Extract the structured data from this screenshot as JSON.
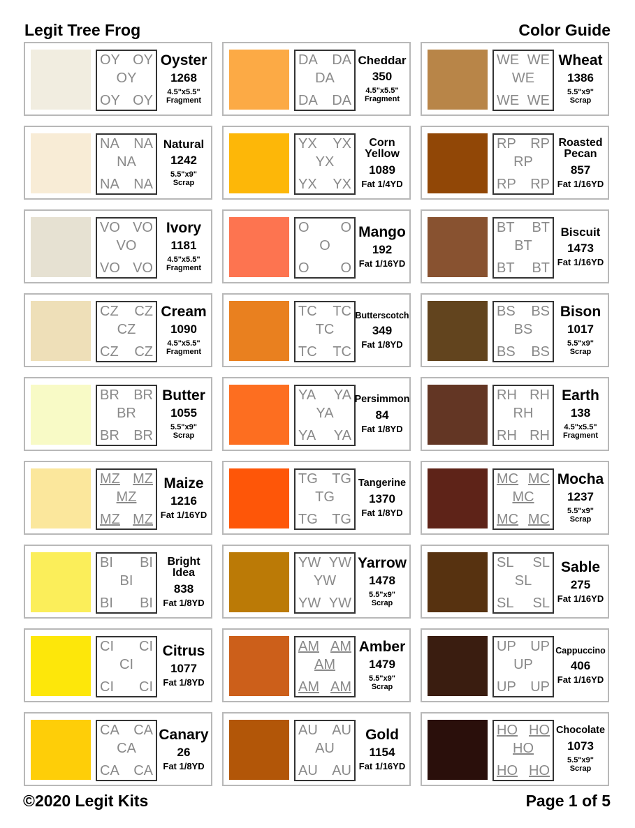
{
  "header": {
    "left": "Legit Tree Frog",
    "right": "Color Guide"
  },
  "footer": {
    "left": "©2020 Legit Kits",
    "right": "Page 1 of 5"
  },
  "columns": [
    [
      {
        "name": "Oyster",
        "code": "OY",
        "number": "1268",
        "size": [
          "4.5\"x5.5\"",
          "Fragment"
        ],
        "color": "#f1ede0"
      },
      {
        "name": "Natural",
        "code": "NA",
        "number": "1242",
        "size": [
          "5.5\"x9\"",
          "Scrap"
        ],
        "color": "#f8ecd6"
      },
      {
        "name": "Ivory",
        "code": "VO",
        "number": "1181",
        "size": [
          "4.5\"x5.5\"",
          "Fragment"
        ],
        "color": "#e6e1d2"
      },
      {
        "name": "Cream",
        "code": "CZ",
        "number": "1090",
        "size": [
          "4.5\"x5.5\"",
          "Fragment"
        ],
        "color": "#eedfb8"
      },
      {
        "name": "Butter",
        "code": "BR",
        "number": "1055",
        "size": [
          "5.5\"x9\"",
          "Scrap"
        ],
        "color": "#f8fac6"
      },
      {
        "name": "Maize",
        "code": "MZ",
        "underline": true,
        "number": "1216",
        "size": [
          "Fat 1/16YD"
        ],
        "color": "#fbe79c"
      },
      {
        "name": "Bright Idea",
        "code": "BI",
        "number": "838",
        "size": [
          "Fat 1/8YD"
        ],
        "color": "#fbee5a"
      },
      {
        "name": "Citrus",
        "code": "CI",
        "number": "1077",
        "size": [
          "Fat 1/8YD"
        ],
        "color": "#fde70a"
      },
      {
        "name": "Canary",
        "code": "CA",
        "number": "26",
        "size": [
          "Fat 1/8YD"
        ],
        "color": "#fece08"
      }
    ],
    [
      {
        "name": "Cheddar",
        "code": "DA",
        "number": "350",
        "size": [
          "4.5\"x5.5\"",
          "Fragment"
        ],
        "color": "#fcaa45"
      },
      {
        "name": "Corn Yellow",
        "code": "YX",
        "number": "1089",
        "size": [
          "Fat 1/4YD"
        ],
        "color": "#fdb708"
      },
      {
        "name": "Mango",
        "code": "O",
        "number": "192",
        "size": [
          "Fat 1/16YD"
        ],
        "color": "#fd7450"
      },
      {
        "name": "Butterscotch",
        "code": "TC",
        "number": "349",
        "size": [
          "Fat 1/8YD"
        ],
        "color": "#e9801f"
      },
      {
        "name": "Persimmon",
        "code": "YA",
        "number": "84",
        "size": [
          "Fat 1/8YD"
        ],
        "color": "#fd6e20"
      },
      {
        "name": "Tangerine",
        "code": "TG",
        "number": "1370",
        "size": [
          "Fat 1/8YD"
        ],
        "color": "#fe5608"
      },
      {
        "name": "Yarrow",
        "code": "YW",
        "number": "1478",
        "size": [
          "5.5\"x9\"",
          "Scrap"
        ],
        "color": "#bb7a06"
      },
      {
        "name": "Amber",
        "code": "AM",
        "underline": true,
        "number": "1479",
        "size": [
          "5.5\"x9\"",
          "Scrap"
        ],
        "color": "#cc5f1a"
      },
      {
        "name": "Gold",
        "code": "AU",
        "number": "1154",
        "size": [
          "Fat 1/16YD"
        ],
        "color": "#b25608"
      }
    ],
    [
      {
        "name": "Wheat",
        "code": "WE",
        "number": "1386",
        "size": [
          "5.5\"x9\"",
          "Scrap"
        ],
        "color": "#b88548"
      },
      {
        "name": "Roasted Pecan",
        "code": "RP",
        "number": "857",
        "size": [
          "Fat 1/16YD"
        ],
        "color": "#914706"
      },
      {
        "name": "Biscuit",
        "code": "BT",
        "number": "1473",
        "size": [
          "Fat 1/16YD"
        ],
        "color": "#885230"
      },
      {
        "name": "Bison",
        "code": "BS",
        "number": "1017",
        "size": [
          "5.5\"x9\"",
          "Scrap"
        ],
        "color": "#62441e"
      },
      {
        "name": "Earth",
        "code": "RH",
        "number": "138",
        "size": [
          "4.5\"x5.5\"",
          "Fragment"
        ],
        "color": "#633624"
      },
      {
        "name": "Mocha",
        "code": "MC",
        "underline": true,
        "number": "1237",
        "size": [
          "5.5\"x9\"",
          "Scrap"
        ],
        "color": "#5e2318"
      },
      {
        "name": "Sable",
        "code": "SL",
        "number": "275",
        "size": [
          "Fat 1/16YD"
        ],
        "color": "#573210"
      },
      {
        "name": "Cappuccino",
        "code": "UP",
        "number": "406",
        "size": [
          "Fat 1/16YD"
        ],
        "color": "#3a1d10"
      },
      {
        "name": "Chocolate",
        "code": "HO",
        "underline": true,
        "number": "1073",
        "size": [
          "5.5\"x9\"",
          "Scrap"
        ],
        "color": "#2a0f0b"
      }
    ]
  ]
}
